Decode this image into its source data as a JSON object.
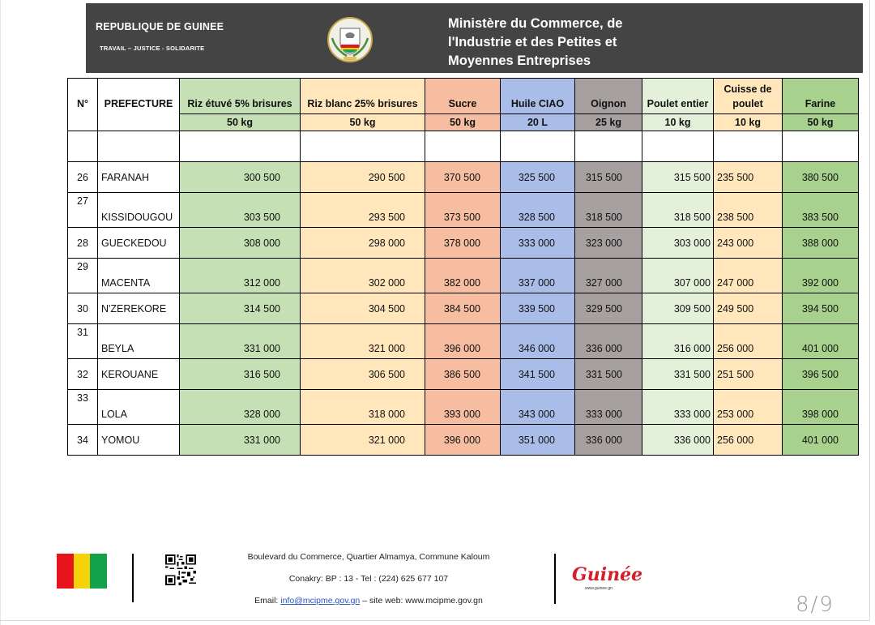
{
  "header": {
    "country": "REPUBLIQUE DE GUINEE",
    "motto": "TRAVAIL – JUSTICE - SOLIDARITE",
    "ministry_lines": [
      "Ministère du Commerce, de",
      "l'Industrie et des Petites et",
      "Moyennes Entreprises"
    ],
    "emblem_icon": "guinea-coat-of-arms-icon"
  },
  "table": {
    "columns": [
      {
        "label": "N°",
        "unit": ""
      },
      {
        "label": "PREFECTURE",
        "unit": ""
      },
      {
        "label": "Riz étuvé 5% brisures",
        "unit": "50 kg"
      },
      {
        "label": "Riz blanc 25% brisures",
        "unit": "50 kg"
      },
      {
        "label": "Sucre",
        "unit": "50 kg"
      },
      {
        "label": "Huile CIAO",
        "unit": "20 L"
      },
      {
        "label": "Oignon",
        "unit": "25 kg"
      },
      {
        "label": "Poulet entier",
        "unit": "10 kg"
      },
      {
        "label": "Cuisse de poulet",
        "unit": "10 kg"
      },
      {
        "label": "Farine",
        "unit": "50 kg"
      }
    ],
    "colors": {
      "riz_etuve": "#c5e0b4",
      "riz_blanc": "#ffe6bb",
      "sucre": "#f6bda0",
      "huile": "#aabde8",
      "oignon": "#a6a1a0",
      "poulet": "#e3f0da",
      "cuisse": "#ffe6bb",
      "farine": "#a8d18d"
    },
    "rows": [
      {
        "n": "26",
        "prefecture": "FARANAH",
        "v": [
          "300 500",
          "290 500",
          "370 500",
          "325 500",
          "315 500",
          "315 500",
          "235 500",
          "380 500"
        ]
      },
      {
        "n": "27",
        "prefecture": "KISSIDOUGOU",
        "v": [
          "303 500",
          "293 500",
          "373 500",
          "328 500",
          "318 500",
          "318 500",
          "238 500",
          "383 500"
        ]
      },
      {
        "n": "28",
        "prefecture": "GUECKEDOU",
        "v": [
          "308 000",
          "298 000",
          "378 000",
          "333 000",
          "323 000",
          "303 000",
          "243 000",
          "388 000"
        ]
      },
      {
        "n": "29",
        "prefecture": "MACENTA",
        "v": [
          "312 000",
          "302 000",
          "382 000",
          "337 000",
          "327 000",
          "307 000",
          "247 000",
          "392 000"
        ]
      },
      {
        "n": "30",
        "prefecture": "N'ZEREKORE",
        "v": [
          "314 500",
          "304 500",
          "384 500",
          "339 500",
          "329 500",
          "309 500",
          "249 500",
          "394 500"
        ]
      },
      {
        "n": "31",
        "prefecture": "BEYLA",
        "v": [
          "331 000",
          "321 000",
          "396 000",
          "346 000",
          "336 000",
          "316 000",
          "256 000",
          "401 000"
        ]
      },
      {
        "n": "32",
        "prefecture": "KEROUANE",
        "v": [
          "316 500",
          "306 500",
          "386 500",
          "341 500",
          "331 500",
          "331 500",
          "251 500",
          "396 500"
        ]
      },
      {
        "n": "33",
        "prefecture": "LOLA",
        "v": [
          "328 000",
          "318 000",
          "393 000",
          "343 000",
          "333 000",
          "333 000",
          "253 000",
          "398 000"
        ]
      },
      {
        "n": "34",
        "prefecture": "YOMOU",
        "v": [
          "331 000",
          "321 000",
          "396 000",
          "351 000",
          "336 000",
          "336 000",
          "256 000",
          "401 000"
        ]
      }
    ]
  },
  "footer": {
    "flag_colors": [
      "#e8141b",
      "#f6d20a",
      "#13a14a"
    ],
    "address_line1": "Boulevard du Commerce, Quartier Almamya, Commune Kaloum",
    "address_line2": "Conakry: BP : 13 - Tel : (224) 625 677 107",
    "email_prefix": "Email: ",
    "email": "info@mcipme.gov.gn",
    "site_text": " – site web: www.mcipme.gov.gn",
    "logo_text": "Guinée",
    "logo_site": "www.guinee.gn",
    "page_number": "8/9"
  }
}
